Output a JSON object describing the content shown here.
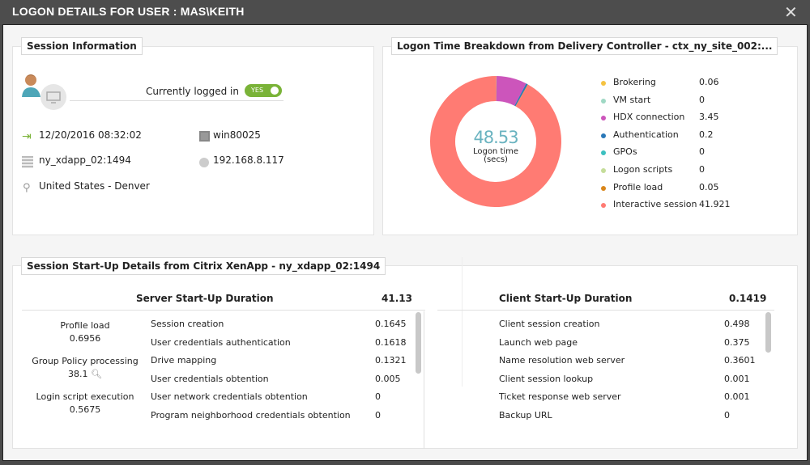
{
  "window": {
    "title": "LOGON DETAILS FOR USER : MAS\\KEITH",
    "close_icon": "close-icon"
  },
  "session_info": {
    "title": "Session Information",
    "logged_in_label": "Currently logged in",
    "logged_in_toggle": "YES",
    "toggle_color": "#7ab338",
    "logon_time": "12/20/2016 08:32:02",
    "machine": "win80025",
    "server": "ny_xdapp_02:1494",
    "ip": "192.168.8.117",
    "location": "United States - Denver"
  },
  "breakdown": {
    "title": "Logon Time Breakdown from Delivery Controller - ctx_ny_site_002:...",
    "center_value": "48.53",
    "center_label_1": "Logon time",
    "center_label_2": "(secs)"
  },
  "chart_data": {
    "type": "pie",
    "donut": true,
    "legend_position": "right",
    "categories": [
      "Brokering",
      "VM start",
      "HDX connection",
      "Authentication",
      "GPOs",
      "Logon scripts",
      "Profile load",
      "Interactive session"
    ],
    "values": [
      0.06,
      0,
      3.45,
      0.2,
      0,
      0,
      0.05,
      41.921
    ],
    "value_labels": [
      "0.06",
      "0",
      "3.45",
      "0.2",
      "0",
      "0",
      "0.05",
      "41.921"
    ],
    "colors": [
      "#f5c342",
      "#9fd8c4",
      "#cc55bb",
      "#2a78b8",
      "#3cc0c0",
      "#c5dd9a",
      "#d9861a",
      "#ff7b73"
    ]
  },
  "startup": {
    "title": "Session Start-Up Details from Citrix XenApp - ny_xdapp_02:1494",
    "server": {
      "header": "Server Start-Up Duration",
      "total": "41.13",
      "summary": [
        {
          "label": "Profile load",
          "value": "0.6956"
        },
        {
          "label": "Group Policy processing",
          "value": "38.1"
        },
        {
          "label": "Login script execution",
          "value": "0.5675"
        }
      ],
      "rows": [
        {
          "name": "Session creation",
          "value": "0.1645"
        },
        {
          "name": "User credentials authentication",
          "value": "0.1618"
        },
        {
          "name": "Drive mapping",
          "value": "0.1321"
        },
        {
          "name": "User credentials obtention",
          "value": "0.005"
        },
        {
          "name": "User network credentials obtention",
          "value": "0"
        },
        {
          "name": "Program neighborhood credentials obtention",
          "value": "0"
        }
      ]
    },
    "client": {
      "header": "Client Start-Up Duration",
      "total": "0.1419",
      "rows": [
        {
          "name": "Client session creation",
          "value": "0.498"
        },
        {
          "name": "Launch web page",
          "value": "0.375"
        },
        {
          "name": "Name resolution web server",
          "value": "0.3601"
        },
        {
          "name": "Client session lookup",
          "value": "0.001"
        },
        {
          "name": "Ticket response web server",
          "value": "0.001"
        },
        {
          "name": "Backup URL",
          "value": "0"
        }
      ]
    }
  }
}
